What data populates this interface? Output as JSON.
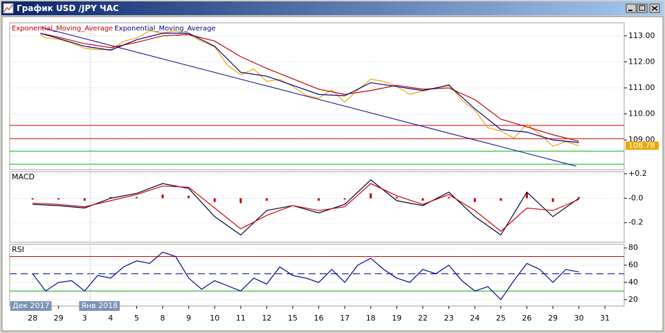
{
  "window": {
    "title": "График USD /JPY  ЧАС"
  },
  "chart_data": [
    {
      "type": "line",
      "xlim": [
        -0.88,
        22.74
      ],
      "ylim": [
        107.86,
        113.5
      ],
      "grid": true,
      "yticks": [
        {
          "value": 109,
          "label": "109.00"
        },
        {
          "value": 110,
          "label": "110.00"
        },
        {
          "value": 111,
          "label": "111.00"
        },
        {
          "value": 112,
          "label": "112.00"
        },
        {
          "value": 113,
          "label": "113.00"
        }
      ],
      "series": [
        {
          "color": "#e8a800",
          "x": [
            0.3,
            0.5,
            1,
            1.5,
            2,
            2.5,
            3,
            3.5,
            4,
            4.5,
            5,
            5.5,
            6,
            6.5,
            7,
            7.5,
            8,
            8.5,
            9,
            9.5,
            10,
            10.5,
            11,
            11.5,
            12,
            12.5,
            13,
            13.5,
            14,
            14.5,
            15,
            15.5,
            16,
            16.5,
            17,
            17.5,
            18,
            18.5,
            19,
            19.5,
            20,
            20.5,
            21
          ],
          "values": [
            113.05,
            112.92,
            112.87,
            112.73,
            112.52,
            112.47,
            112.47,
            112.79,
            112.92,
            113.19,
            113.11,
            113.19,
            113.05,
            112.79,
            112.58,
            111.86,
            111.51,
            111.73,
            111.25,
            111.33,
            111.06,
            110.72,
            110.61,
            110.93,
            110.45,
            110.93,
            111.33,
            111.25,
            111.06,
            110.75,
            110.88,
            110.98,
            111.14,
            110.53,
            110.14,
            109.47,
            109.34,
            109.07,
            109.6,
            109.21,
            108.76,
            108.94,
            108.78
          ]
        },
        {
          "name": "Exponential_Moving_Average",
          "color": "#c00000",
          "x": [
            0.3,
            1,
            2,
            3,
            4,
            5,
            6,
            7,
            8,
            9,
            10,
            11,
            12,
            13,
            14,
            15,
            16,
            17,
            18,
            19,
            20,
            21
          ],
          "values": [
            113.1,
            112.95,
            112.7,
            112.55,
            112.75,
            113.0,
            113.05,
            112.8,
            112.2,
            111.75,
            111.35,
            110.95,
            110.75,
            110.9,
            111.1,
            110.95,
            111.0,
            110.55,
            109.8,
            109.5,
            109.2,
            108.95
          ]
        },
        {
          "name": "Exponential_Moving_Average",
          "color": "#000080",
          "x": [
            0.3,
            1,
            2,
            3,
            4,
            5,
            6,
            7,
            8,
            9,
            10,
            11,
            12,
            13,
            14,
            15,
            16,
            17,
            18,
            19,
            20,
            21
          ],
          "values": [
            113.1,
            112.9,
            112.6,
            112.45,
            112.85,
            113.1,
            113.1,
            112.6,
            111.6,
            111.45,
            111.1,
            110.75,
            110.7,
            111.2,
            111.05,
            110.9,
            111.1,
            110.2,
            109.4,
            109.3,
            109.0,
            108.9
          ]
        }
      ],
      "levels": [
        {
          "value": 109.56,
          "color": "#d00000"
        },
        {
          "value": 109.05,
          "color": "#d00000"
        },
        {
          "value": 108.57,
          "color": "#00b000"
        },
        {
          "value": 108.07,
          "color": "#00b000"
        }
      ],
      "trendlines": [
        {
          "x": [
            0.35,
            20.9
          ],
          "values": [
            113.32,
            107.99
          ],
          "color": "#00008b"
        }
      ],
      "last_price": 108.78,
      "last_price_color": "#e8a800"
    },
    {
      "type": "line",
      "title": "MACD",
      "xlim": [
        -0.88,
        22.74
      ],
      "ylim": [
        -0.36,
        0.217
      ],
      "grid": true,
      "yticks": [
        {
          "value": -0.2,
          "label": "-0.2"
        },
        {
          "value": 0,
          "label": "-0.0"
        },
        {
          "value": 0.2,
          "label": "+0.2"
        }
      ],
      "series": [
        {
          "type": "bar",
          "color": "#c00000",
          "x": [
            0,
            1,
            2,
            3,
            4,
            5,
            6,
            7,
            8,
            9,
            10,
            11,
            12,
            13,
            14,
            15,
            16,
            17,
            18,
            19,
            20,
            21
          ],
          "values": [
            -0.01,
            -0.01,
            -0.02,
            0.01,
            0.01,
            0.03,
            0.02,
            -0.03,
            -0.04,
            -0.02,
            0.0,
            -0.02,
            -0.01,
            0.04,
            0.01,
            -0.02,
            0.01,
            -0.03,
            -0.02,
            0.05,
            -0.03,
            0.01
          ]
        },
        {
          "color": "#000033",
          "x": [
            0,
            1,
            2,
            3,
            4,
            5,
            6,
            7,
            8,
            9,
            10,
            11,
            12,
            13,
            14,
            15,
            16,
            17,
            18,
            19,
            20,
            21
          ],
          "values": [
            -0.05,
            -0.06,
            -0.08,
            0.0,
            0.04,
            0.12,
            0.08,
            -0.15,
            -0.3,
            -0.1,
            -0.06,
            -0.12,
            -0.05,
            0.15,
            -0.02,
            -0.06,
            0.05,
            -0.15,
            -0.3,
            0.05,
            -0.15,
            0.0
          ]
        },
        {
          "color": "#d00000",
          "x": [
            0,
            1,
            2,
            3,
            4,
            5,
            6,
            7,
            8,
            9,
            10,
            11,
            12,
            13,
            14,
            15,
            16,
            17,
            18,
            19,
            20,
            21
          ],
          "values": [
            -0.04,
            -0.05,
            -0.07,
            -0.02,
            0.03,
            0.1,
            0.09,
            -0.08,
            -0.25,
            -0.14,
            -0.06,
            -0.1,
            -0.07,
            0.12,
            0.02,
            -0.05,
            0.03,
            -0.1,
            -0.27,
            -0.08,
            -0.1,
            -0.01
          ]
        }
      ]
    },
    {
      "type": "line",
      "title": "RSI",
      "xlim": [
        -0.88,
        22.74
      ],
      "ylim": [
        12.6,
        84.1
      ],
      "grid": true,
      "yticks": [
        20,
        40,
        60,
        80
      ],
      "series": [
        {
          "color": "#000090",
          "x": [
            0,
            0.5,
            1,
            1.5,
            2,
            2.5,
            3,
            3.5,
            4,
            4.5,
            5,
            5.5,
            6,
            6.5,
            7,
            7.5,
            8,
            8.5,
            9,
            9.5,
            10,
            10.5,
            11,
            11.5,
            12,
            12.5,
            13,
            13.5,
            14,
            14.5,
            15,
            15.5,
            16,
            16.5,
            17,
            17.5,
            18,
            18.5,
            19,
            19.5,
            20,
            20.5,
            21
          ],
          "values": [
            50,
            30,
            40,
            42,
            30,
            48,
            45,
            58,
            65,
            62,
            75,
            70,
            45,
            32,
            42,
            36,
            30,
            45,
            38,
            58,
            48,
            45,
            40,
            55,
            40,
            60,
            68,
            55,
            45,
            40,
            55,
            50,
            60,
            42,
            30,
            35,
            20,
            42,
            62,
            55,
            40,
            55,
            52
          ]
        }
      ],
      "levels": [
        {
          "value": 70,
          "color": "#d00000"
        },
        {
          "value": 50,
          "color": "#000090",
          "dashed": true
        },
        {
          "value": 30,
          "color": "#00b000"
        }
      ],
      "xticks": [
        {
          "value": 0,
          "label": "28"
        },
        {
          "value": 1,
          "label": "29"
        },
        {
          "value": 2,
          "label": "3"
        },
        {
          "value": 3,
          "label": "4"
        },
        {
          "value": 4,
          "label": "5"
        },
        {
          "value": 5,
          "label": "8"
        },
        {
          "value": 6,
          "label": "9"
        },
        {
          "value": 7,
          "label": "10"
        },
        {
          "value": 8,
          "label": "11"
        },
        {
          "value": 9,
          "label": "12"
        },
        {
          "value": 10,
          "label": "15"
        },
        {
          "value": 11,
          "label": "16"
        },
        {
          "value": 12,
          "label": "17"
        },
        {
          "value": 13,
          "label": "18"
        },
        {
          "value": 14,
          "label": "19"
        },
        {
          "value": 15,
          "label": "22"
        },
        {
          "value": 16,
          "label": "23"
        },
        {
          "value": 17,
          "label": "24"
        },
        {
          "value": 18,
          "label": "25"
        },
        {
          "value": 19,
          "label": "26"
        },
        {
          "value": 20,
          "label": "29"
        },
        {
          "value": 21,
          "label": "30"
        },
        {
          "value": 22,
          "label": "31"
        }
      ],
      "period_labels": [
        {
          "value": -0.85,
          "label": "Дек 2017"
        },
        {
          "value": 2,
          "label": "Янв 2018"
        }
      ]
    }
  ]
}
